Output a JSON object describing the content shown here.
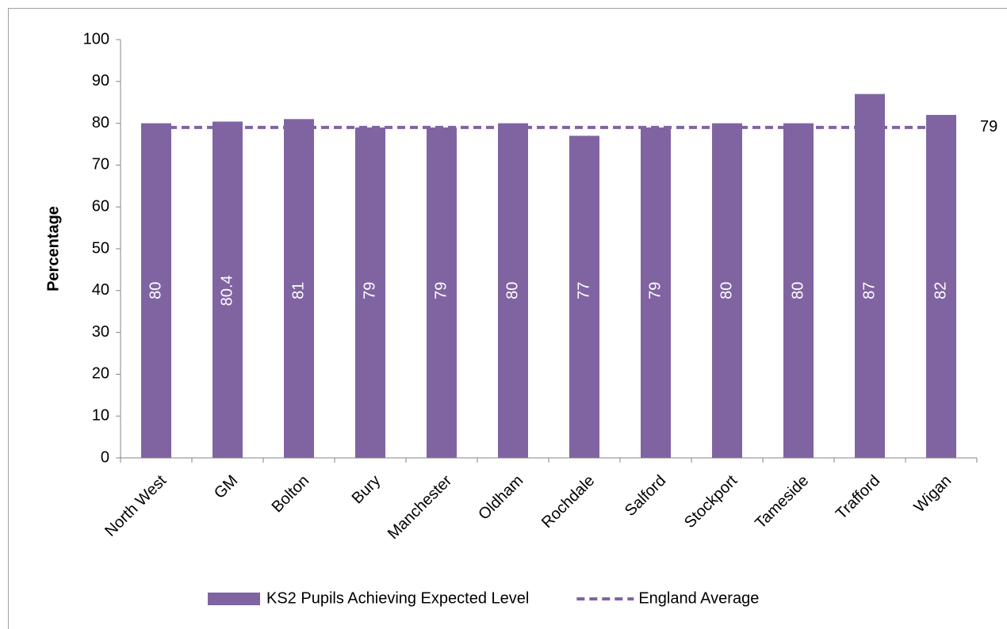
{
  "chart_data": {
    "type": "bar",
    "categories": [
      "North West",
      "GM",
      "Bolton",
      "Bury",
      "Manchester",
      "Oldham",
      "Rochdale",
      "Salford",
      "Stockport",
      "Tameside",
      "Trafford",
      "Wigan"
    ],
    "series": [
      {
        "name": "KS2 Pupils Achieving Expected Level",
        "type": "bar",
        "color": "#8064a2",
        "values": [
          80,
          80.4,
          81,
          79,
          79,
          80,
          77,
          79,
          80,
          80,
          87,
          82
        ]
      },
      {
        "name": "England Average",
        "type": "line",
        "dashed": true,
        "color": "#8064a2",
        "values": [
          79,
          79,
          79,
          79,
          79,
          79,
          79,
          79,
          79,
          79,
          79,
          79
        ]
      }
    ],
    "y_label": "Percentage",
    "ylim": [
      0,
      100
    ],
    "yticks": [
      0,
      10,
      20,
      30,
      40,
      50,
      60,
      70,
      80,
      90,
      100
    ],
    "grid": false,
    "legend": "bottom"
  }
}
